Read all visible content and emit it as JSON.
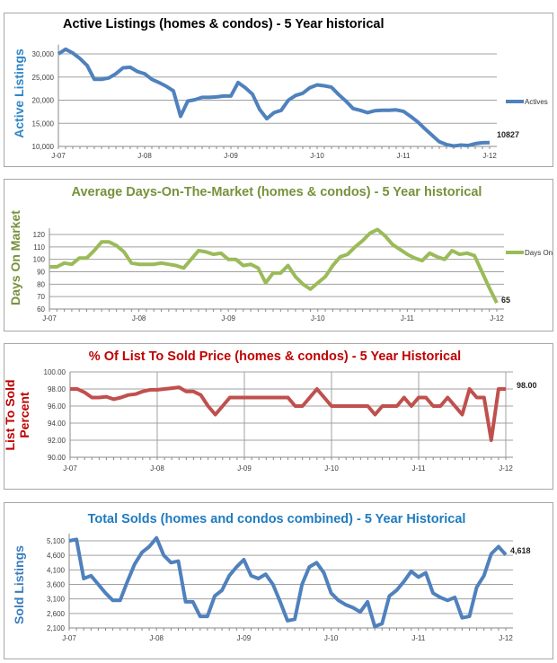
{
  "chart_data": [
    {
      "type": "line",
      "title": "Active Listings (homes & condos) - 5 Year historical",
      "ylabel": "Active Listings",
      "legend": "right",
      "series": [
        {
          "name": "Actives",
          "values": [
            30000,
            31000,
            30200,
            29000,
            27500,
            24500,
            24500,
            24800,
            25700,
            27000,
            27100,
            26200,
            25700,
            24500,
            23800,
            23000,
            22000,
            16500,
            19800,
            20100,
            20600,
            20600,
            20700,
            20900,
            20900,
            23800,
            22700,
            21300,
            18000,
            16000,
            17300,
            17800,
            20000,
            21000,
            21500,
            22700,
            23300,
            23100,
            22800,
            21200,
            19800,
            18200,
            17800,
            17300,
            17700,
            17800,
            17800,
            17900,
            17600,
            16500,
            15300,
            13800,
            12400,
            11000,
            10400,
            10100,
            10300,
            10200,
            10600,
            10800,
            10827
          ]
        }
      ],
      "x_tick_labels": [
        "J-07",
        "J-08",
        "J-09",
        "J-10",
        "J-11",
        "J-12"
      ],
      "y_tick_labels": [
        "10,000",
        "15,000",
        "20,000",
        "25,000",
        "30,000"
      ],
      "ylim": [
        10000,
        32000
      ],
      "y_ticks": [
        10000,
        15000,
        20000,
        25000,
        30000
      ],
      "last_value_label": "10827",
      "grid": "horizontal",
      "colors": {
        "line": "#4f81bd",
        "title": "#000000",
        "ylabel": "#2e86c8"
      }
    },
    {
      "type": "line",
      "title": "Average Days-On-The-Market (homes & condos) - 5 Year historical",
      "ylabel": "Days On Market",
      "legend": "right",
      "series": [
        {
          "name": "Days On",
          "values": [
            94,
            94,
            97,
            96,
            101,
            101,
            107,
            114,
            114,
            111,
            106,
            97,
            96,
            96,
            96,
            97,
            96,
            95,
            93,
            100,
            107,
            106,
            104,
            105,
            100,
            100,
            95,
            96,
            93,
            81,
            89,
            89,
            95,
            86,
            80,
            76,
            81,
            86,
            95,
            102,
            104,
            110,
            115,
            121,
            124,
            119,
            112,
            108,
            104,
            101,
            99,
            105,
            102,
            100,
            107,
            104,
            105,
            103,
            90,
            77,
            65
          ]
        }
      ],
      "x_tick_labels": [
        "J-07",
        "J-08",
        "J-09",
        "J-10",
        "J-11",
        "J-12"
      ],
      "y_tick_labels": [
        "60",
        "70",
        "80",
        "90",
        "100",
        "110",
        "120"
      ],
      "ylim": [
        60,
        125
      ],
      "y_ticks": [
        60,
        70,
        80,
        90,
        100,
        110,
        120
      ],
      "last_value_label": "65",
      "grid": "horizontal",
      "colors": {
        "line": "#9bbb59",
        "title": "#76923c",
        "ylabel": "#76923c"
      }
    },
    {
      "type": "line",
      "title": "% Of List To Sold Price (homes & condos) - 5 Year Historical",
      "ylabel": [
        "List To Sold",
        "Percent"
      ],
      "series": [
        {
          "values": [
            98,
            98,
            97.6,
            97,
            97,
            97.1,
            96.8,
            97,
            97.3,
            97.4,
            97.7,
            97.9,
            97.9,
            98,
            98.1,
            98.2,
            97.7,
            97.7,
            97.3,
            96,
            95,
            96,
            97,
            97,
            97,
            97,
            97,
            97,
            97,
            97,
            97,
            96,
            96,
            97,
            98,
            97,
            96,
            96,
            96,
            96,
            96,
            96,
            95,
            96,
            96,
            96,
            97,
            96,
            97,
            97,
            96,
            96,
            97,
            96,
            95,
            98,
            97,
            97,
            92,
            98,
            98
          ]
        }
      ],
      "x_tick_labels": [
        "J-07",
        "J-08",
        "J-09",
        "J-10",
        "J-11",
        "J-12"
      ],
      "y_tick_labels": [
        "90.00",
        "92.00",
        "94.00",
        "96.00",
        "98.00",
        "100.00"
      ],
      "ylim": [
        90,
        100
      ],
      "y_ticks": [
        90,
        92,
        94,
        96,
        98,
        100
      ],
      "last_value_label": "98.00",
      "grid": "both",
      "colors": {
        "line": "#c0504d",
        "title": "#c00000",
        "ylabel": "#c00000"
      }
    },
    {
      "type": "line",
      "title": "Total Solds (homes and condos combined) - 5 Year Historical",
      "ylabel": "Sold Listings",
      "series": [
        {
          "values": [
            5100,
            5150,
            3800,
            3900,
            3600,
            3300,
            3050,
            3050,
            3700,
            4300,
            4700,
            4900,
            5200,
            4600,
            4350,
            4400,
            3000,
            3000,
            2500,
            2500,
            3200,
            3400,
            3900,
            4200,
            4450,
            3900,
            3800,
            3950,
            3600,
            3000,
            2350,
            2400,
            3600,
            4200,
            4350,
            4000,
            3300,
            3050,
            2900,
            2800,
            2650,
            3000,
            2150,
            2250,
            3200,
            3400,
            3700,
            4050,
            3850,
            4000,
            3300,
            3150,
            3050,
            3150,
            2450,
            2500,
            3500,
            3900,
            4650,
            4900,
            4618
          ]
        }
      ],
      "x_tick_labels": [
        "J-07",
        "J-08",
        "J-09",
        "J-10",
        "J-11",
        "J-12"
      ],
      "y_tick_labels": [
        "2,100",
        "2,600",
        "3,100",
        "3,600",
        "4,100",
        "4,600",
        "5,100"
      ],
      "ylim": [
        2100,
        5350
      ],
      "y_ticks": [
        2100,
        2600,
        3100,
        3600,
        4100,
        4600,
        5100
      ],
      "last_value_label": "4,618",
      "grid": "horizontal",
      "colors": {
        "line": "#4f81bd",
        "title": "#1f7bbf",
        "ylabel": "#3a7dbf"
      }
    }
  ]
}
